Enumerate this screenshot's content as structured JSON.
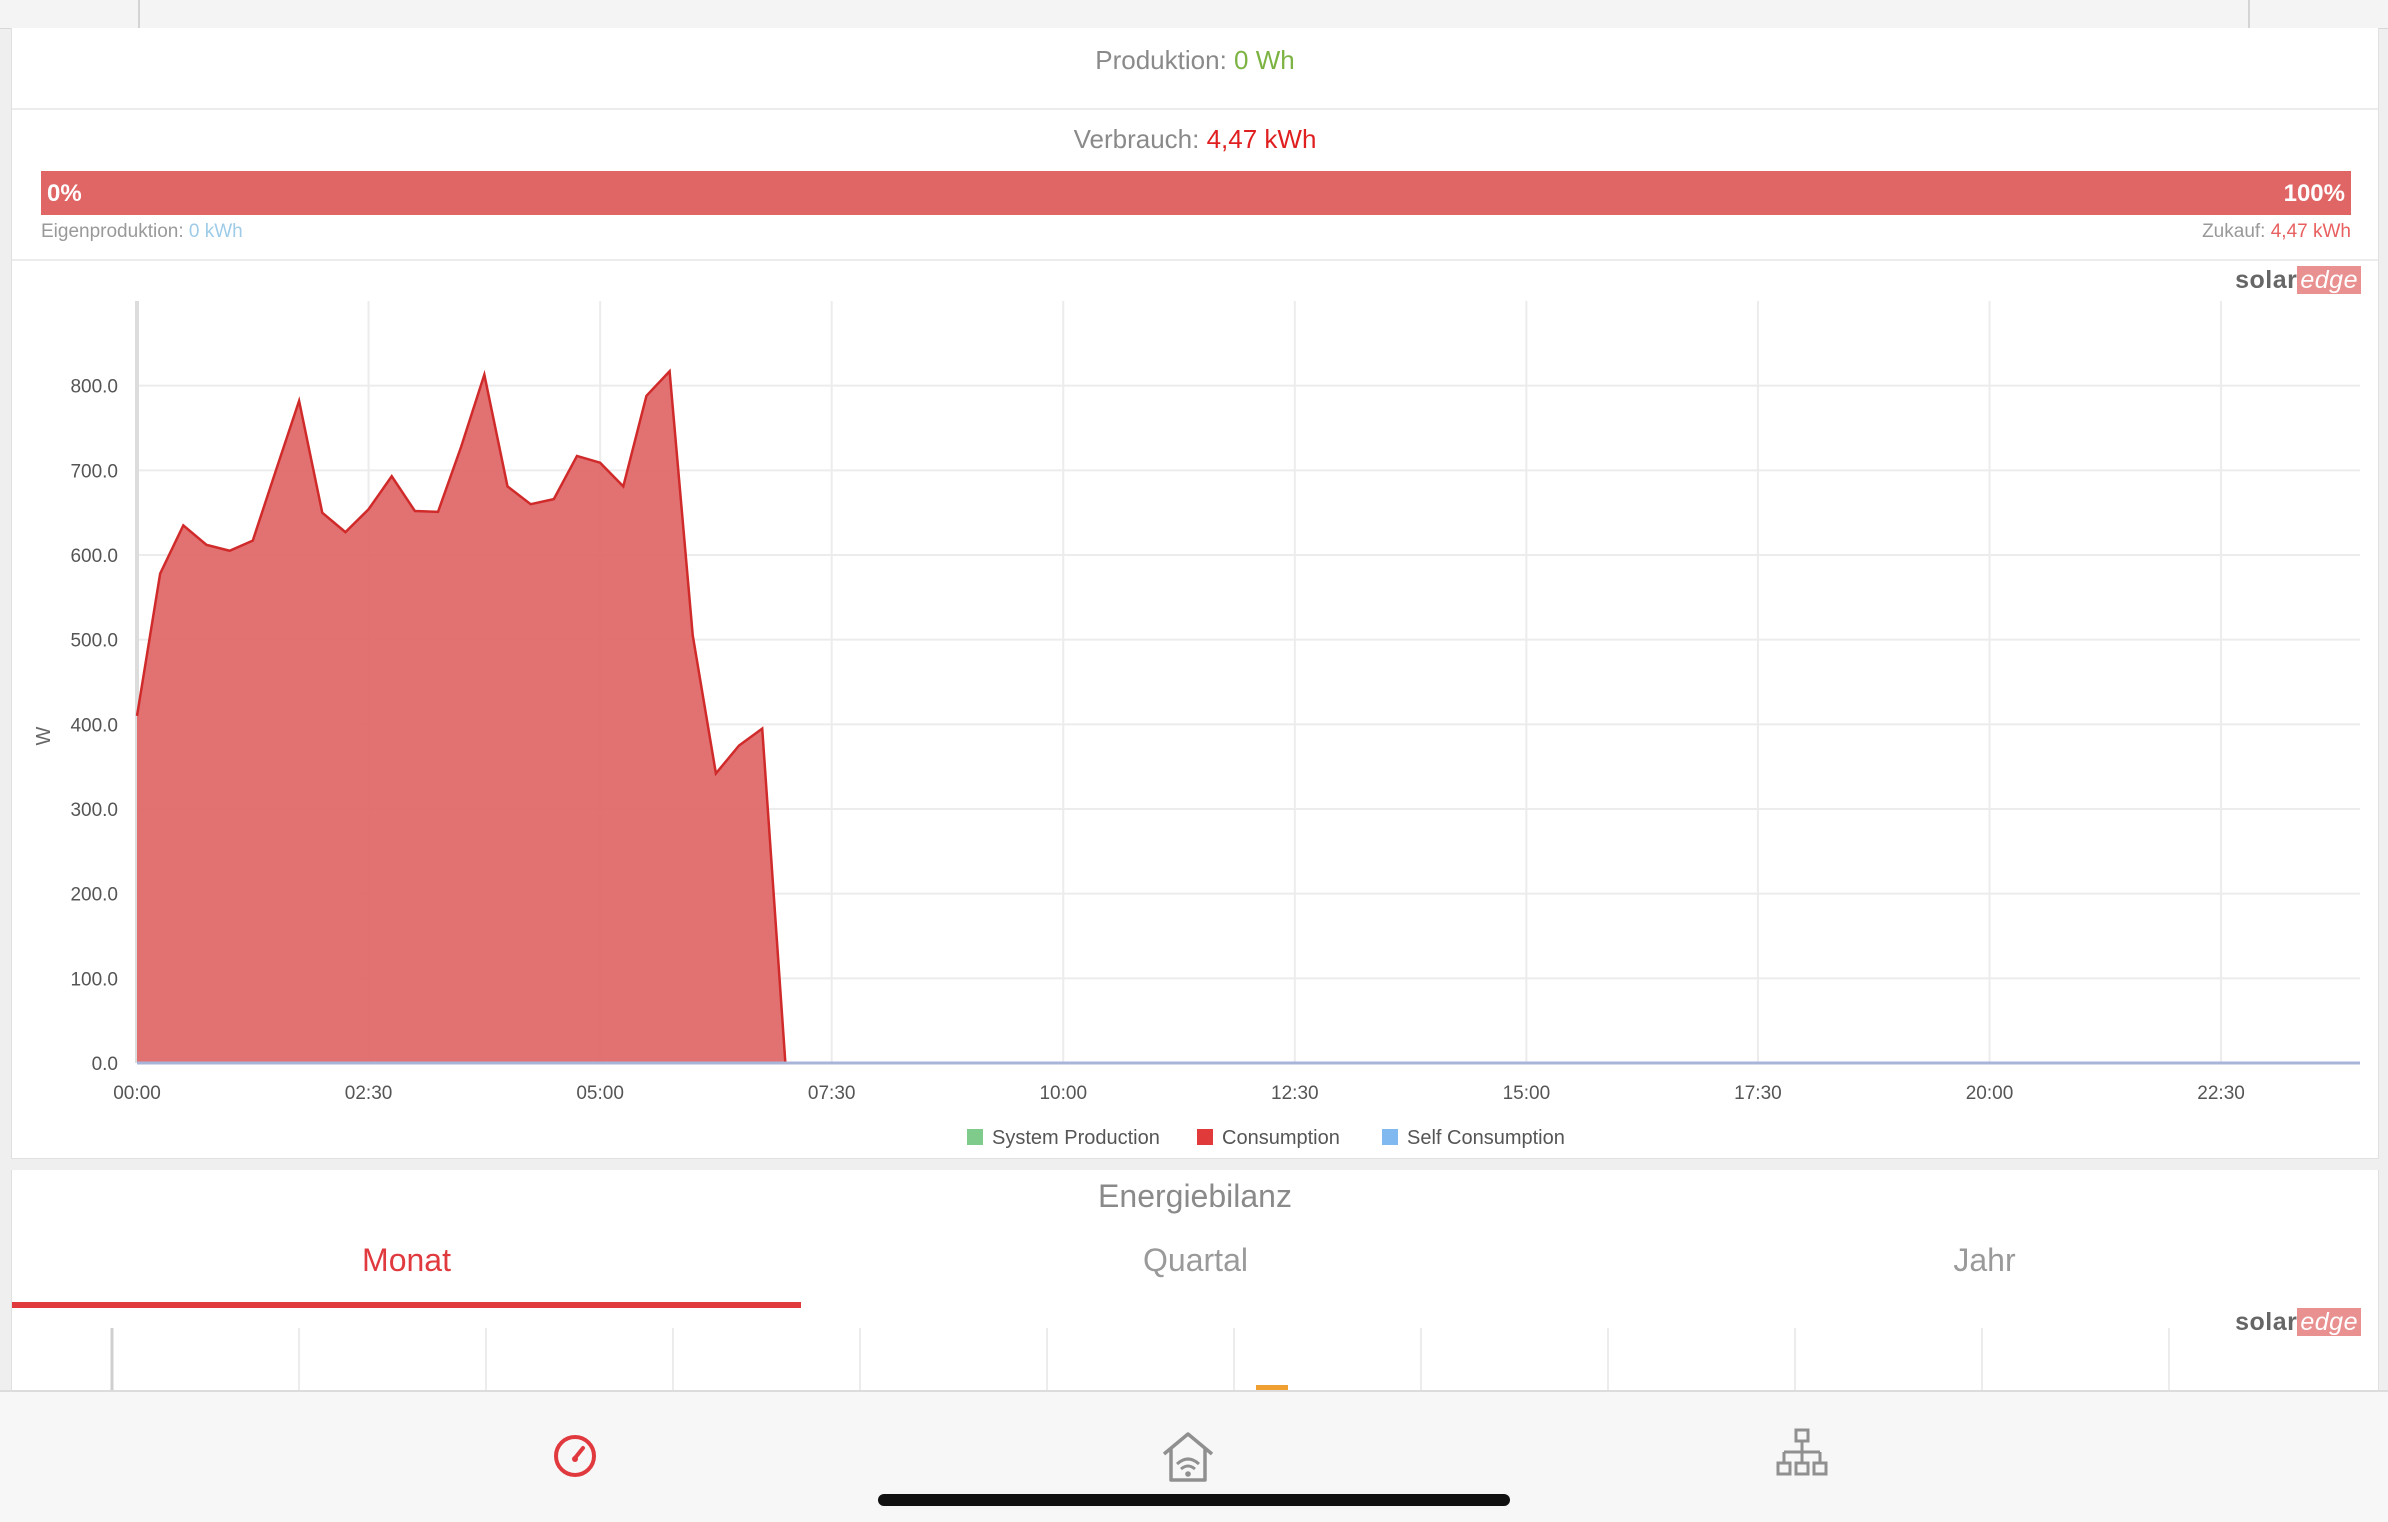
{
  "production": {
    "label": "Produktion:",
    "value": "0 Wh"
  },
  "consumption": {
    "label": "Verbrauch:",
    "value": "4,47 kWh",
    "bar_left": "0%",
    "bar_right": "100%",
    "own_label": "Eigenproduktion:",
    "own_value": "0 kWh",
    "purchase_label": "Zukauf:",
    "purchase_value": "4,47 kWh"
  },
  "logo": {
    "solar": "solar",
    "edge": "edge"
  },
  "colors": {
    "accent": "#e0393e",
    "consumption": "#e06666",
    "production": "#7cb342",
    "self": "#9ecbe8"
  },
  "chart_data": {
    "type": "area",
    "ylabel": "W",
    "xlabel": "",
    "ylim": [
      0,
      900
    ],
    "yticks": [
      "0.0",
      "100.0",
      "200.0",
      "300.0",
      "400.0",
      "500.0",
      "600.0",
      "700.0",
      "800.0"
    ],
    "xticks": [
      "00:00",
      "02:30",
      "05:00",
      "07:30",
      "10:00",
      "12:30",
      "15:00",
      "17:30",
      "20:00",
      "22:30"
    ],
    "legend": [
      "System Production",
      "Consumption",
      "Self Consumption"
    ],
    "legend_colors": [
      "#7ecb8b",
      "#e03a3a",
      "#80b8f0"
    ],
    "grid": true,
    "legend_position": "bottom",
    "series": [
      {
        "name": "Consumption",
        "x": [
          "00:00",
          "00:15",
          "00:30",
          "00:45",
          "01:00",
          "01:15",
          "01:30",
          "01:45",
          "02:00",
          "02:15",
          "02:30",
          "02:45",
          "03:00",
          "03:15",
          "03:30",
          "03:45",
          "04:00",
          "04:15",
          "04:30",
          "04:45",
          "05:00",
          "05:15",
          "05:30",
          "05:45",
          "06:00",
          "06:15",
          "06:30",
          "06:45",
          "07:00",
          "07:15"
        ],
        "values": [
          410,
          578,
          635,
          612,
          605,
          617,
          700,
          782,
          650,
          627,
          654,
          693,
          652,
          651,
          728,
          813,
          681,
          660,
          666,
          717,
          709,
          681,
          788,
          817,
          505,
          342,
          375,
          395,
          0,
          0
        ]
      },
      {
        "name": "System Production",
        "x": [
          "00:00",
          "23:45"
        ],
        "values": [
          0,
          0
        ]
      },
      {
        "name": "Self Consumption",
        "x": [
          "00:00",
          "23:45"
        ],
        "values": [
          0,
          0
        ]
      }
    ]
  },
  "energy_balance": {
    "title": "Energiebilanz",
    "tabs": [
      "Monat",
      "Quartal",
      "Jahr"
    ]
  },
  "nav": {
    "items": [
      "dashboard-icon",
      "home-wifi-icon",
      "layout-icon"
    ]
  }
}
